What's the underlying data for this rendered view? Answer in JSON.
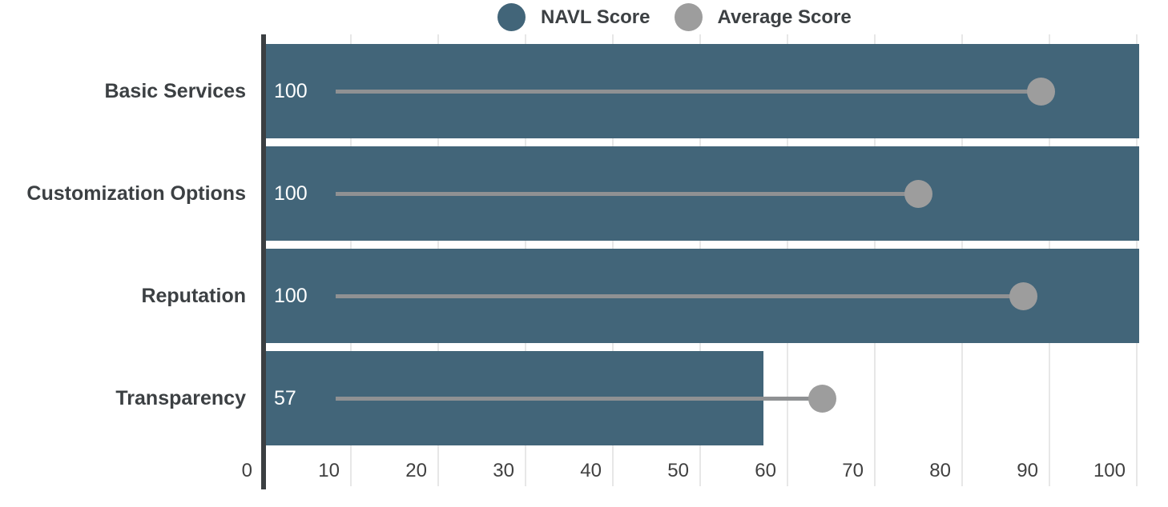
{
  "legend": {
    "items": [
      {
        "label": "NAVL Score",
        "color": "#426579"
      },
      {
        "label": "Average Score",
        "color": "#9d9d9d"
      }
    ]
  },
  "chart_data": {
    "type": "bar",
    "orientation": "horizontal",
    "marker_style": "lollipop",
    "title": "",
    "categories": [
      "Basic Services",
      "Customization Options",
      "Reputation",
      "Transparency"
    ],
    "series": [
      {
        "name": "NAVL Score",
        "values": [
          100,
          100,
          100,
          57
        ],
        "color": "#426579"
      },
      {
        "name": "Average Score",
        "values": [
          89,
          75,
          87,
          64
        ],
        "color": "#9d9d9d"
      }
    ],
    "bar_value_labels": [
      "100",
      "100",
      "100",
      "57"
    ],
    "x_ticks": [
      0,
      10,
      20,
      30,
      40,
      50,
      60,
      70,
      80,
      90,
      100
    ],
    "xlim": [
      0,
      100
    ],
    "grid": true,
    "legend_position": "top"
  },
  "colors": {
    "bar": "#426579",
    "marker": "#9d9d9d",
    "marker_stem": "#8f9193",
    "gridline": "#e7e7e7",
    "axis_line": "#3b3f42",
    "tick_text": "#404040",
    "category_text": "#3c4043",
    "bar_label_text": "#ffffff",
    "background": "#ffffff"
  }
}
